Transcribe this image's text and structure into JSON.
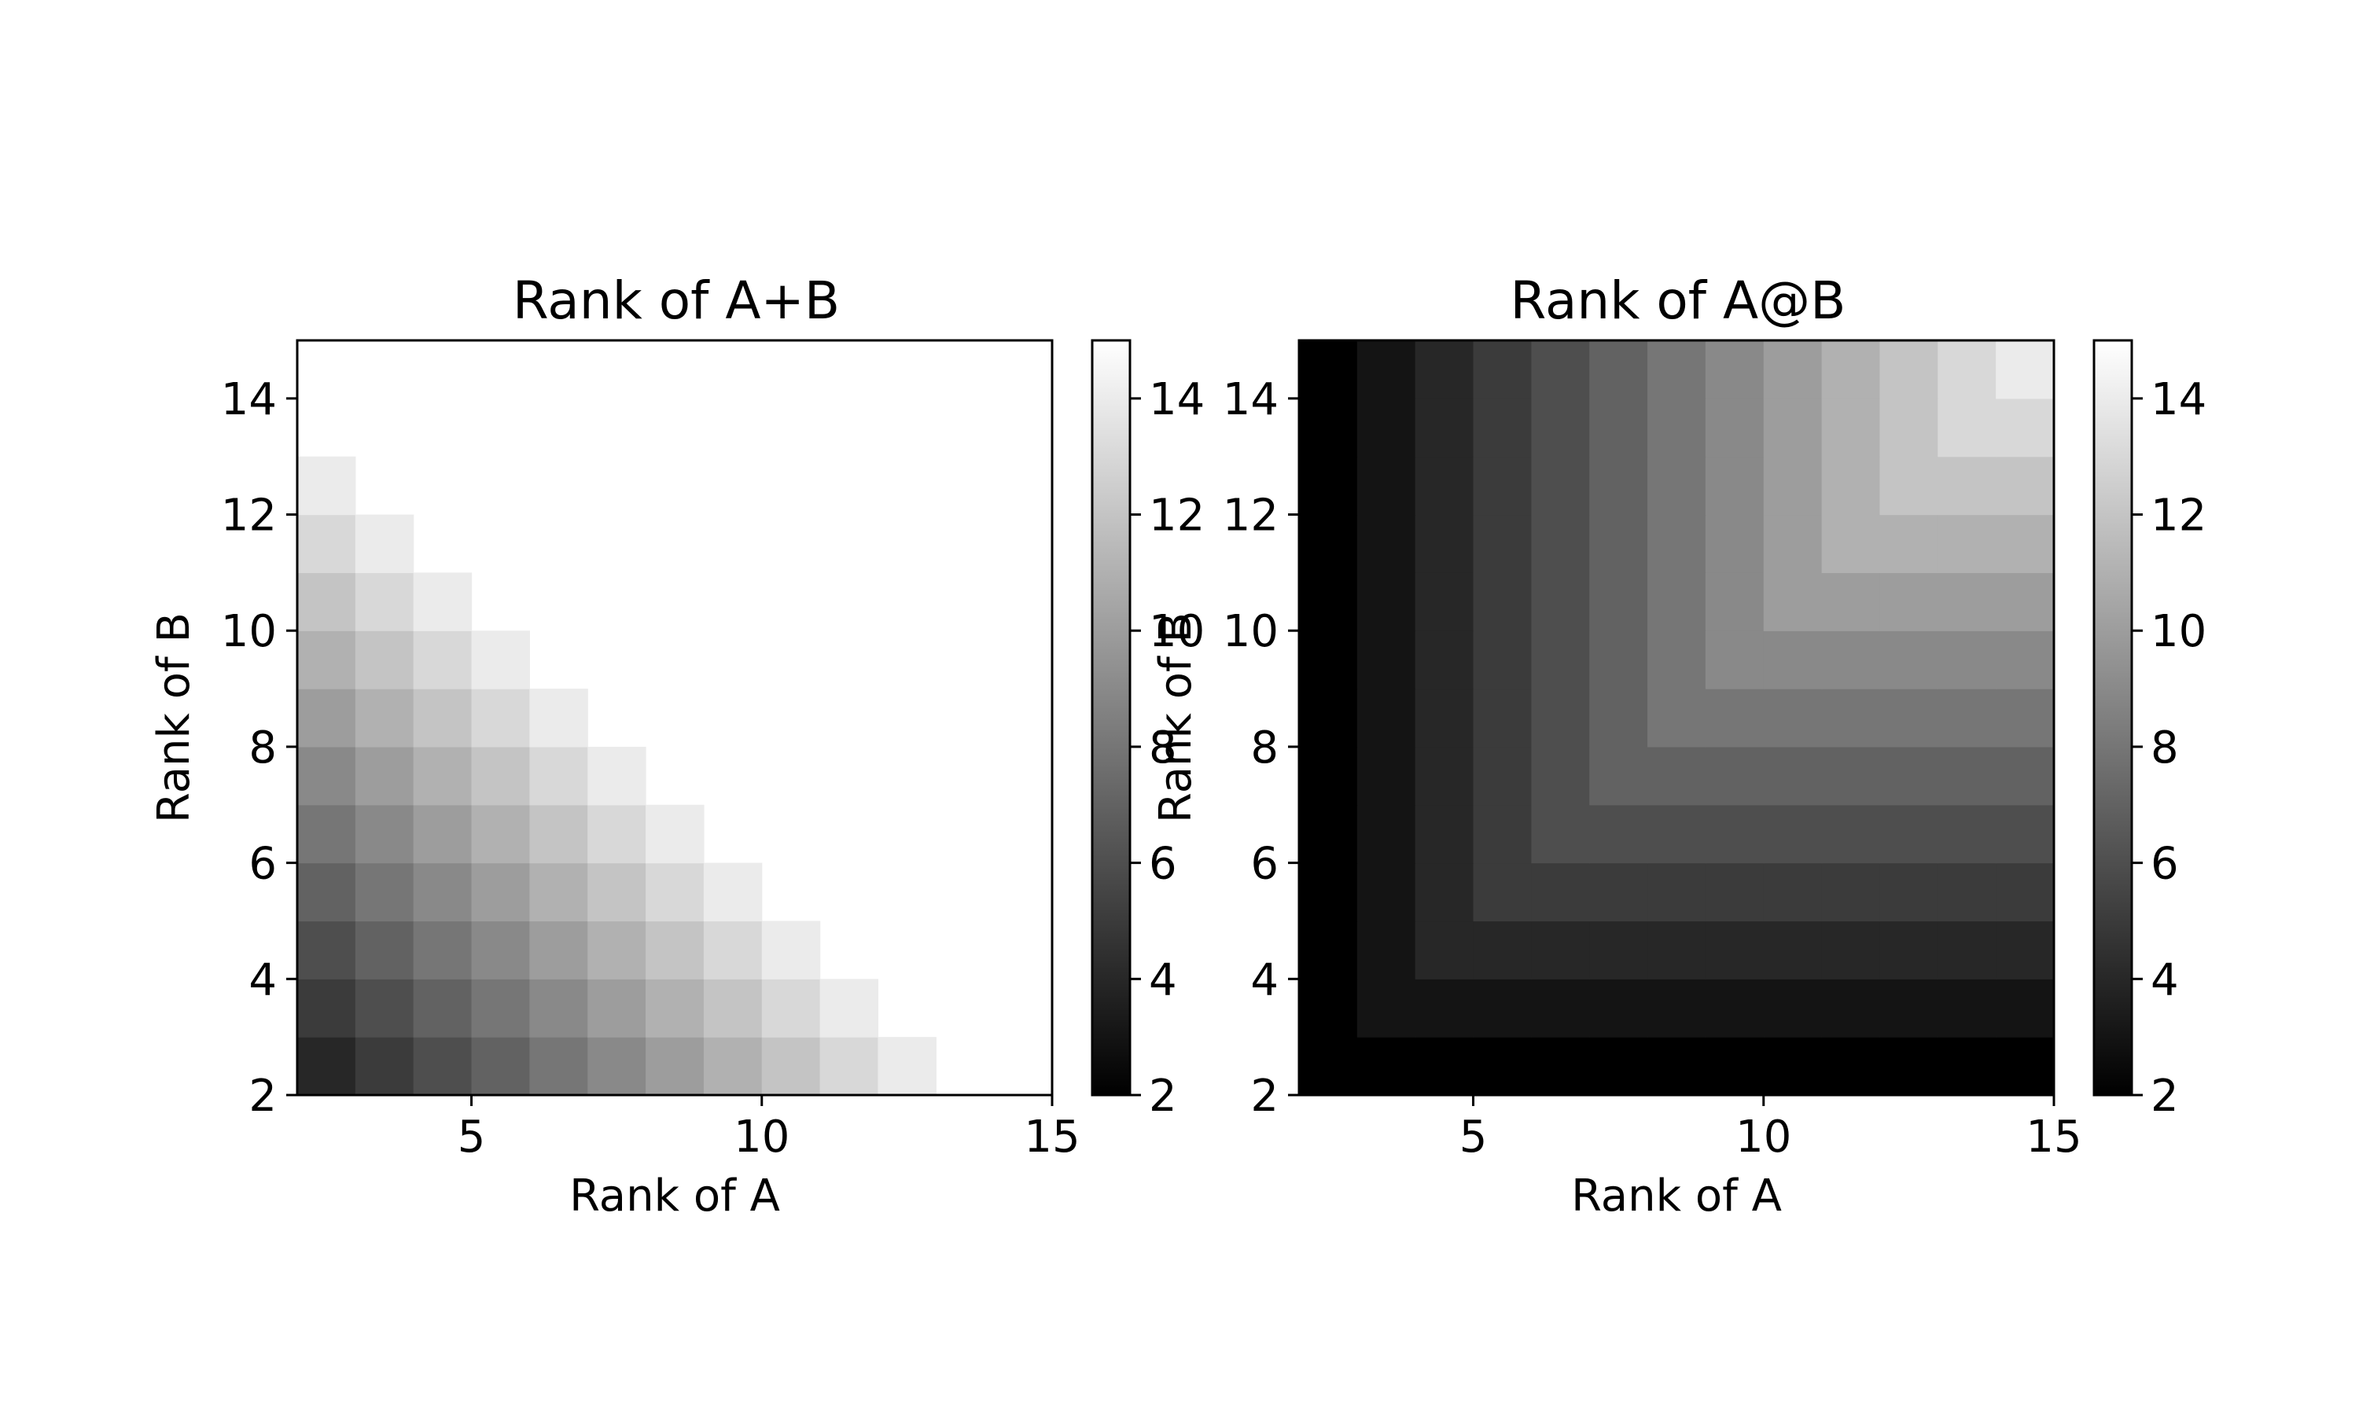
{
  "figure": {
    "background": "#ffffff",
    "colormap": "gray"
  },
  "chart_data": [
    {
      "type": "heatmap",
      "title": "Rank of A+B",
      "xlabel": "Rank of A",
      "ylabel": "Rank of B",
      "x_values": [
        2,
        3,
        4,
        5,
        6,
        7,
        8,
        9,
        10,
        11,
        12,
        13,
        14
      ],
      "y_values": [
        2,
        3,
        4,
        5,
        6,
        7,
        8,
        9,
        10,
        11,
        12,
        13,
        14
      ],
      "xlim": [
        2,
        15
      ],
      "ylim": [
        2,
        15
      ],
      "x_ticks": [
        5,
        10,
        15
      ],
      "y_ticks": [
        2,
        4,
        6,
        8,
        10,
        12,
        14
      ],
      "cell_rule": "value = rank_A + rank_B; cells with value > 14 are blank",
      "values_by_row_from_B2": [
        [
          4,
          5,
          6,
          7,
          8,
          9,
          10,
          11,
          12,
          13,
          14,
          null,
          null
        ],
        [
          5,
          6,
          7,
          8,
          9,
          10,
          11,
          12,
          13,
          14,
          null,
          null,
          null
        ],
        [
          6,
          7,
          8,
          9,
          10,
          11,
          12,
          13,
          14,
          null,
          null,
          null,
          null
        ],
        [
          7,
          8,
          9,
          10,
          11,
          12,
          13,
          14,
          null,
          null,
          null,
          null,
          null
        ],
        [
          8,
          9,
          10,
          11,
          12,
          13,
          14,
          null,
          null,
          null,
          null,
          null,
          null
        ],
        [
          9,
          10,
          11,
          12,
          13,
          14,
          null,
          null,
          null,
          null,
          null,
          null,
          null
        ],
        [
          10,
          11,
          12,
          13,
          14,
          null,
          null,
          null,
          null,
          null,
          null,
          null,
          null
        ],
        [
          11,
          12,
          13,
          14,
          null,
          null,
          null,
          null,
          null,
          null,
          null,
          null,
          null
        ],
        [
          12,
          13,
          14,
          null,
          null,
          null,
          null,
          null,
          null,
          null,
          null,
          null,
          null
        ],
        [
          13,
          14,
          null,
          null,
          null,
          null,
          null,
          null,
          null,
          null,
          null,
          null,
          null
        ],
        [
          14,
          null,
          null,
          null,
          null,
          null,
          null,
          null,
          null,
          null,
          null,
          null,
          null
        ],
        [
          null,
          null,
          null,
          null,
          null,
          null,
          null,
          null,
          null,
          null,
          null,
          null,
          null
        ],
        [
          null,
          null,
          null,
          null,
          null,
          null,
          null,
          null,
          null,
          null,
          null,
          null,
          null
        ]
      ],
      "colorbar": {
        "vmin": 2,
        "vmax": 15,
        "ticks": [
          2,
          4,
          6,
          8,
          10,
          12,
          14
        ]
      }
    },
    {
      "type": "heatmap",
      "title": "Rank of A@B",
      "xlabel": "Rank of A",
      "ylabel": "Rank of B",
      "x_values": [
        2,
        3,
        4,
        5,
        6,
        7,
        8,
        9,
        10,
        11,
        12,
        13,
        14
      ],
      "y_values": [
        2,
        3,
        4,
        5,
        6,
        7,
        8,
        9,
        10,
        11,
        12,
        13,
        14
      ],
      "xlim": [
        2,
        15
      ],
      "ylim": [
        2,
        15
      ],
      "x_ticks": [
        5,
        10,
        15
      ],
      "y_ticks": [
        2,
        4,
        6,
        8,
        10,
        12,
        14
      ],
      "cell_rule": "value = min(rank_A, rank_B)",
      "values_by_row_from_B2": [
        [
          2,
          2,
          2,
          2,
          2,
          2,
          2,
          2,
          2,
          2,
          2,
          2,
          2
        ],
        [
          2,
          3,
          3,
          3,
          3,
          3,
          3,
          3,
          3,
          3,
          3,
          3,
          3
        ],
        [
          2,
          3,
          4,
          4,
          4,
          4,
          4,
          4,
          4,
          4,
          4,
          4,
          4
        ],
        [
          2,
          3,
          4,
          5,
          5,
          5,
          5,
          5,
          5,
          5,
          5,
          5,
          5
        ],
        [
          2,
          3,
          4,
          5,
          6,
          6,
          6,
          6,
          6,
          6,
          6,
          6,
          6
        ],
        [
          2,
          3,
          4,
          5,
          6,
          7,
          7,
          7,
          7,
          7,
          7,
          7,
          7
        ],
        [
          2,
          3,
          4,
          5,
          6,
          7,
          8,
          8,
          8,
          8,
          8,
          8,
          8
        ],
        [
          2,
          3,
          4,
          5,
          6,
          7,
          8,
          9,
          9,
          9,
          9,
          9,
          9
        ],
        [
          2,
          3,
          4,
          5,
          6,
          7,
          8,
          9,
          10,
          10,
          10,
          10,
          10
        ],
        [
          2,
          3,
          4,
          5,
          6,
          7,
          8,
          9,
          10,
          11,
          11,
          11,
          11
        ],
        [
          2,
          3,
          4,
          5,
          6,
          7,
          8,
          9,
          10,
          11,
          12,
          12,
          12
        ],
        [
          2,
          3,
          4,
          5,
          6,
          7,
          8,
          9,
          10,
          11,
          12,
          13,
          13
        ],
        [
          2,
          3,
          4,
          5,
          6,
          7,
          8,
          9,
          10,
          11,
          12,
          13,
          14
        ]
      ],
      "colorbar": {
        "vmin": 2,
        "vmax": 15,
        "ticks": [
          2,
          4,
          6,
          8,
          10,
          12,
          14
        ]
      }
    }
  ]
}
